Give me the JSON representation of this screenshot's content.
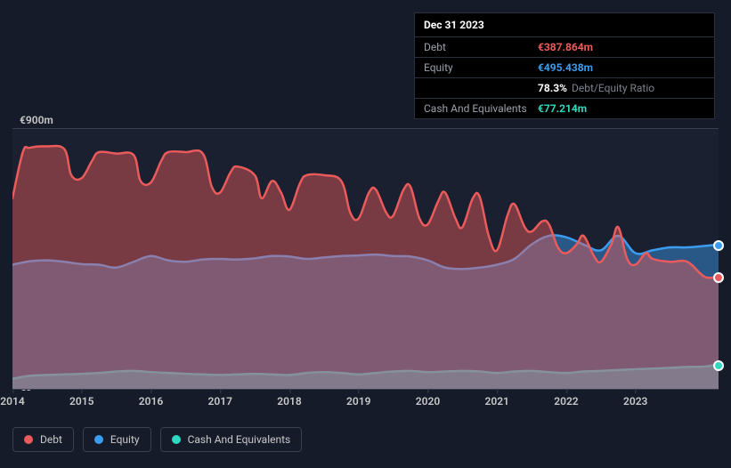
{
  "tooltip": {
    "date": "Dec 31 2023",
    "rows": [
      {
        "label": "Debt",
        "value": "€387.864m",
        "cls": "debt"
      },
      {
        "label": "Equity",
        "value": "€495.438m",
        "cls": "equity"
      },
      {
        "label": "",
        "value": "78.3%",
        "cls": "ratio",
        "suffix": "Debt/Equity Ratio"
      },
      {
        "label": "Cash And Equivalents",
        "value": "€77.214m",
        "cls": "cash"
      }
    ]
  },
  "chart": {
    "type": "area",
    "background_color": "#1a2030",
    "grid_color": "#3a4050",
    "ylim": [
      0,
      900
    ],
    "y_unit": "€",
    "y_suffix": "m",
    "y_label_top": "€900m",
    "y_label_bottom": "€0",
    "x_start": 2014,
    "x_end": 2024.2,
    "x_ticks": [
      2014,
      2015,
      2016,
      2017,
      2018,
      2019,
      2020,
      2021,
      2022,
      2023
    ],
    "series": [
      {
        "name": "Cash And Equivalents",
        "color": "#2dd9c0",
        "fill_opacity": 0.6,
        "line_width": 2.5,
        "data": [
          [
            2014.0,
            35
          ],
          [
            2014.25,
            45
          ],
          [
            2014.5,
            48
          ],
          [
            2014.75,
            50
          ],
          [
            2015.0,
            52
          ],
          [
            2015.25,
            55
          ],
          [
            2015.5,
            60
          ],
          [
            2015.75,
            62
          ],
          [
            2016.0,
            58
          ],
          [
            2016.25,
            55
          ],
          [
            2016.5,
            52
          ],
          [
            2016.75,
            50
          ],
          [
            2017.0,
            48
          ],
          [
            2017.25,
            50
          ],
          [
            2017.5,
            52
          ],
          [
            2017.75,
            50
          ],
          [
            2018.0,
            48
          ],
          [
            2018.25,
            55
          ],
          [
            2018.5,
            58
          ],
          [
            2018.75,
            55
          ],
          [
            2019.0,
            50
          ],
          [
            2019.25,
            55
          ],
          [
            2019.5,
            60
          ],
          [
            2019.75,
            62
          ],
          [
            2020.0,
            58
          ],
          [
            2020.25,
            60
          ],
          [
            2020.5,
            62
          ],
          [
            2020.75,
            60
          ],
          [
            2021.0,
            55
          ],
          [
            2021.25,
            60
          ],
          [
            2021.5,
            62
          ],
          [
            2021.75,
            58
          ],
          [
            2022.0,
            55
          ],
          [
            2022.25,
            60
          ],
          [
            2022.5,
            62
          ],
          [
            2022.75,
            65
          ],
          [
            2023.0,
            68
          ],
          [
            2023.25,
            70
          ],
          [
            2023.5,
            73
          ],
          [
            2023.75,
            76
          ],
          [
            2024.0,
            77
          ],
          [
            2024.2,
            85
          ]
        ]
      },
      {
        "name": "Equity",
        "color": "#3b9df0",
        "fill_opacity": 0.45,
        "line_width": 2.5,
        "data": [
          [
            2014.0,
            430
          ],
          [
            2014.25,
            442
          ],
          [
            2014.5,
            445
          ],
          [
            2014.75,
            440
          ],
          [
            2015.0,
            432
          ],
          [
            2015.25,
            430
          ],
          [
            2015.5,
            420
          ],
          [
            2015.75,
            440
          ],
          [
            2016.0,
            460
          ],
          [
            2016.25,
            445
          ],
          [
            2016.5,
            440
          ],
          [
            2016.75,
            448
          ],
          [
            2017.0,
            450
          ],
          [
            2017.25,
            448
          ],
          [
            2017.5,
            452
          ],
          [
            2017.75,
            460
          ],
          [
            2018.0,
            458
          ],
          [
            2018.25,
            450
          ],
          [
            2018.5,
            455
          ],
          [
            2018.75,
            460
          ],
          [
            2019.0,
            462
          ],
          [
            2019.25,
            465
          ],
          [
            2019.5,
            460
          ],
          [
            2019.75,
            458
          ],
          [
            2020.0,
            445
          ],
          [
            2020.25,
            420
          ],
          [
            2020.5,
            415
          ],
          [
            2020.75,
            420
          ],
          [
            2021.0,
            430
          ],
          [
            2021.25,
            450
          ],
          [
            2021.5,
            500
          ],
          [
            2021.75,
            530
          ],
          [
            2022.0,
            525
          ],
          [
            2022.25,
            500
          ],
          [
            2022.5,
            480
          ],
          [
            2022.75,
            530
          ],
          [
            2023.0,
            470
          ],
          [
            2023.25,
            480
          ],
          [
            2023.5,
            490
          ],
          [
            2023.75,
            490
          ],
          [
            2024.0,
            495
          ],
          [
            2024.2,
            500
          ]
        ]
      },
      {
        "name": "Debt",
        "color": "#eb5b5b",
        "fill_opacity": 0.45,
        "line_width": 2.5,
        "data": [
          [
            2014.0,
            660
          ],
          [
            2014.15,
            820
          ],
          [
            2014.25,
            835
          ],
          [
            2014.5,
            840
          ],
          [
            2014.75,
            830
          ],
          [
            2014.85,
            740
          ],
          [
            2015.0,
            730
          ],
          [
            2015.15,
            790
          ],
          [
            2015.25,
            820
          ],
          [
            2015.5,
            815
          ],
          [
            2015.75,
            810
          ],
          [
            2015.85,
            720
          ],
          [
            2016.0,
            715
          ],
          [
            2016.15,
            790
          ],
          [
            2016.25,
            820
          ],
          [
            2016.5,
            820
          ],
          [
            2016.75,
            815
          ],
          [
            2016.88,
            700
          ],
          [
            2017.0,
            680
          ],
          [
            2017.15,
            750
          ],
          [
            2017.25,
            770
          ],
          [
            2017.5,
            740
          ],
          [
            2017.6,
            660
          ],
          [
            2017.75,
            720
          ],
          [
            2017.88,
            680
          ],
          [
            2018.0,
            620
          ],
          [
            2018.15,
            710
          ],
          [
            2018.25,
            740
          ],
          [
            2018.5,
            740
          ],
          [
            2018.75,
            720
          ],
          [
            2018.88,
            610
          ],
          [
            2019.0,
            590
          ],
          [
            2019.15,
            680
          ],
          [
            2019.25,
            690
          ],
          [
            2019.4,
            610
          ],
          [
            2019.5,
            600
          ],
          [
            2019.65,
            690
          ],
          [
            2019.75,
            700
          ],
          [
            2019.88,
            590
          ],
          [
            2020.0,
            570
          ],
          [
            2020.15,
            650
          ],
          [
            2020.25,
            680
          ],
          [
            2020.4,
            590
          ],
          [
            2020.5,
            560
          ],
          [
            2020.65,
            660
          ],
          [
            2020.75,
            665
          ],
          [
            2020.88,
            530
          ],
          [
            2021.0,
            480
          ],
          [
            2021.15,
            600
          ],
          [
            2021.25,
            640
          ],
          [
            2021.4,
            560
          ],
          [
            2021.5,
            545
          ],
          [
            2021.65,
            580
          ],
          [
            2021.75,
            570
          ],
          [
            2021.88,
            490
          ],
          [
            2022.0,
            470
          ],
          [
            2022.15,
            500
          ],
          [
            2022.25,
            530
          ],
          [
            2022.4,
            460
          ],
          [
            2022.5,
            440
          ],
          [
            2022.65,
            500
          ],
          [
            2022.75,
            560
          ],
          [
            2022.88,
            450
          ],
          [
            2023.0,
            430
          ],
          [
            2023.15,
            470
          ],
          [
            2023.25,
            450
          ],
          [
            2023.5,
            440
          ],
          [
            2023.75,
            440
          ],
          [
            2024.0,
            388
          ],
          [
            2024.2,
            390
          ]
        ]
      }
    ],
    "markers": [
      {
        "x": 2024.2,
        "y": 500,
        "color": "#3b9df0"
      },
      {
        "x": 2024.2,
        "y": 390,
        "color": "#eb5b5b"
      },
      {
        "x": 2024.2,
        "y": 85,
        "color": "#2dd9c0"
      }
    ]
  },
  "legend": [
    {
      "label": "Debt",
      "color": "#eb5b5b"
    },
    {
      "label": "Equity",
      "color": "#3b9df0"
    },
    {
      "label": "Cash And Equivalents",
      "color": "#2dd9c0"
    }
  ]
}
